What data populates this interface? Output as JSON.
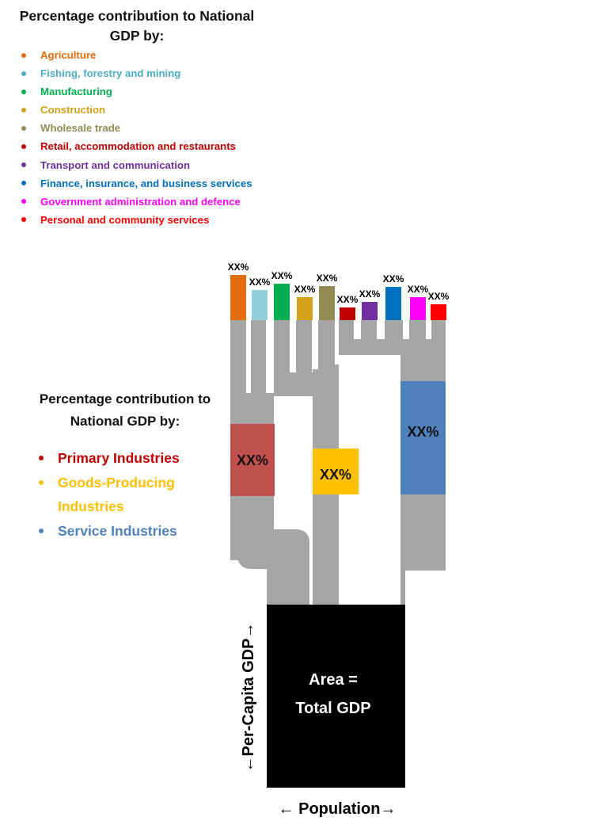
{
  "sector_legend": {
    "title": "Percentage contribution  to National GDP by:",
    "items": [
      {
        "label": "Agriculture",
        "color": "#e46c0a"
      },
      {
        "label": "Fishing, forestry and mining",
        "color": "#4bacc6"
      },
      {
        "label": "Manufacturing",
        "color": "#00b050"
      },
      {
        "label": "Construction",
        "color": "#d4a017"
      },
      {
        "label": "Wholesale trade",
        "color": "#948a54"
      },
      {
        "label": "Retail, accommodation and restaurants",
        "color": "#c00000"
      },
      {
        "label": "Transport and communication",
        "color": "#7030a0"
      },
      {
        "label": "Finance, insurance, and business services",
        "color": "#0070c0"
      },
      {
        "label": "Government administration and defence",
        "color": "#ff00ff"
      },
      {
        "label": "Personal and community services",
        "color": "#ff0000"
      }
    ]
  },
  "group_legend": {
    "title": "Percentage contribution  to National  GDP by:",
    "items": [
      {
        "label": "Primary  Industries",
        "color": "#c00000",
        "dot_color": "#c00000"
      },
      {
        "label": "Goods-Producing Industries",
        "color": "#ffc000",
        "dot_color": "#ffc000"
      },
      {
        "label": "Service Industries",
        "color": "#4f81bd",
        "dot_color": "#4f81bd"
      }
    ]
  },
  "sector_values": [
    "XX%",
    "XX%",
    "XX%",
    "XX%",
    "XX%",
    "XX%",
    "XX%",
    "XX%",
    "XX%",
    "XX%"
  ],
  "sector_bar_colors": [
    "#e46c0a",
    "#92cddc",
    "#00b050",
    "#d4a017",
    "#948a54",
    "#c00000",
    "#7030a0",
    "#0070c0",
    "#ff00ff",
    "#ff0000"
  ],
  "group_boxes": [
    {
      "value": "XX%",
      "color": "#c0504d"
    },
    {
      "value": "XX%",
      "color": "#ffc000"
    },
    {
      "value": "XX%",
      "color": "#4f81bd"
    }
  ],
  "total_box": {
    "line1": "Area =",
    "line2": "Total GDP",
    "color": "#000000"
  },
  "axis_labels": {
    "vertical": "←Per-Capita GDP→",
    "horizontal": "← Population→"
  },
  "connector_color": "#a6a6a6"
}
